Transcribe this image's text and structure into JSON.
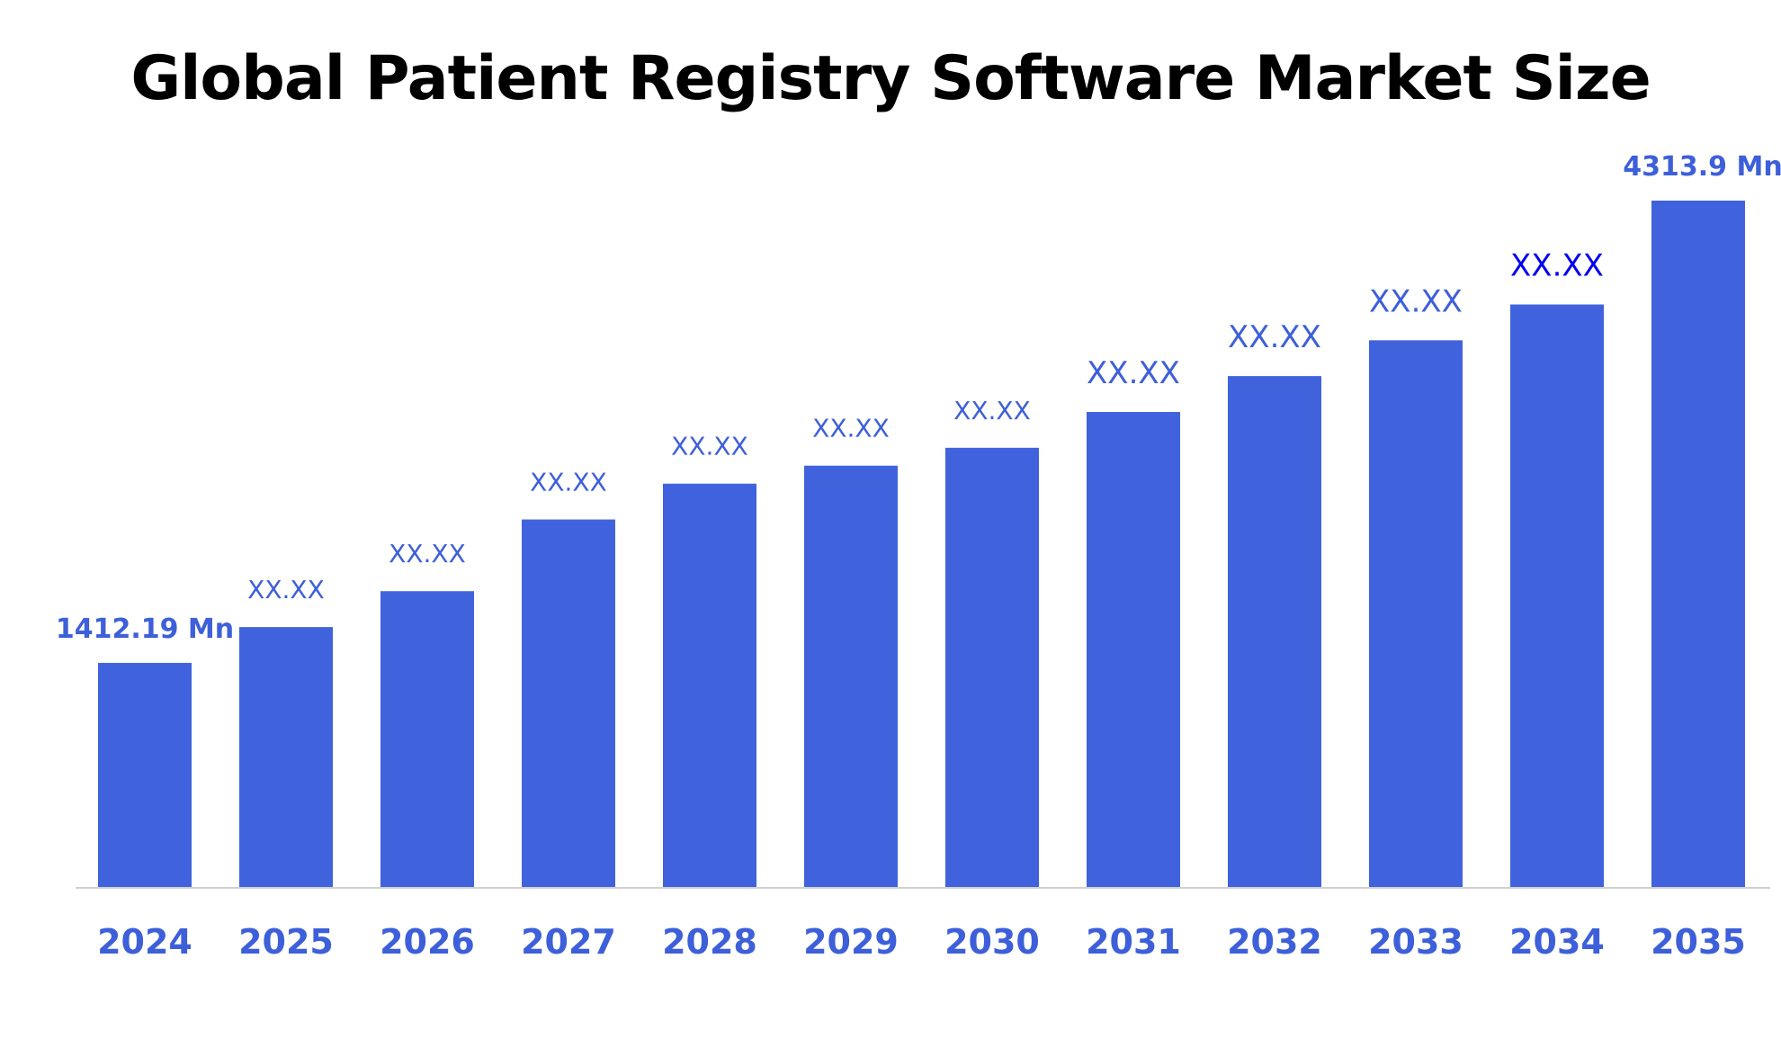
{
  "chart_data": {
    "type": "bar",
    "title": "Global Patient Registry Software Market Size",
    "categories": [
      "2024",
      "2025",
      "2026",
      "2027",
      "2028",
      "2029",
      "2030",
      "2031",
      "2032",
      "2033",
      "2034",
      "2035"
    ],
    "values": [
      1412.19,
      1637,
      1862,
      2312,
      2537,
      2650,
      2762,
      2987,
      3212,
      3437,
      3662,
      4313.9
    ],
    "data_labels": [
      "1412.19 Mn",
      "XX.XX",
      "XX.XX",
      "XX.XX",
      "XX.XX",
      "XX.XX",
      "XX.XX",
      "XX.XX",
      "XX.XX",
      "XX.XX",
      "XX.XX",
      "4313.9 Mn"
    ],
    "xlabel": "",
    "ylabel": "",
    "ylim": [
      0,
      4313.9
    ],
    "grid": false,
    "legend": "none",
    "colors": {
      "bar": "#4063DD",
      "label": "#3D5FD9",
      "label_highlight": "#0000F0",
      "axis_line": "#D0D0D0",
      "title": "#000000"
    }
  }
}
